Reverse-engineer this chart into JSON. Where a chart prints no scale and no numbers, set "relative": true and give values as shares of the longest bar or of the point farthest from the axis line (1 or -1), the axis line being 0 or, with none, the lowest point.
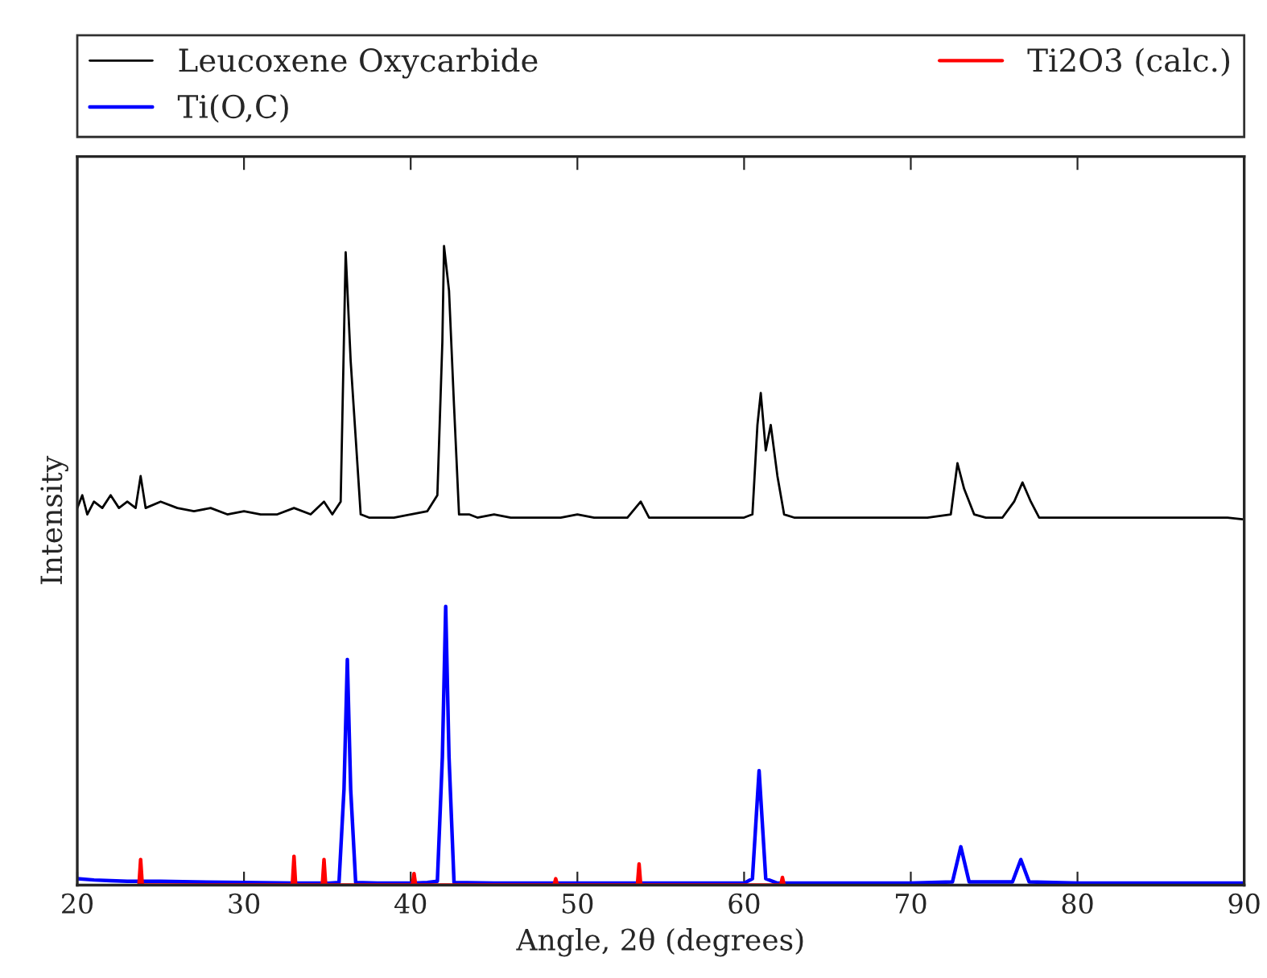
{
  "chart_data": {
    "type": "line",
    "relative": true,
    "xlabel": "Angle, 2θ (degrees)",
    "ylabel": "Intensity",
    "xlim": [
      20,
      90
    ],
    "xticks": [
      20,
      30,
      40,
      50,
      60,
      70,
      80,
      90
    ],
    "legend": "top",
    "grid": false,
    "series": [
      {
        "name": "Leucoxene Oxycarbide",
        "color": "#000000",
        "x": [
          20.0,
          20.3,
          20.6,
          21.0,
          21.5,
          22.0,
          22.5,
          23.0,
          23.5,
          23.8,
          24.1,
          25,
          26,
          27,
          28,
          29,
          30,
          31,
          32,
          33,
          34,
          34.8,
          35.3,
          35.8,
          36.1,
          36.4,
          36.7,
          37.0,
          37.5,
          38,
          39,
          40,
          41,
          41.6,
          41.9,
          42.0,
          42.3,
          42.6,
          42.9,
          43.5,
          44,
          45,
          46,
          47,
          48,
          49,
          50,
          51,
          52,
          53,
          53.8,
          54.3,
          55,
          56,
          57,
          58,
          59,
          60,
          60.5,
          60.8,
          61.0,
          61.3,
          61.6,
          62.0,
          62.4,
          63,
          65,
          67,
          69,
          71,
          72.4,
          72.8,
          73.2,
          73.8,
          74.5,
          75.5,
          76.2,
          76.7,
          77.2,
          77.7,
          79,
          81,
          83,
          85,
          87,
          89,
          90
        ],
        "values": [
          0.59,
          0.61,
          0.58,
          0.6,
          0.59,
          0.61,
          0.59,
          0.6,
          0.59,
          0.64,
          0.59,
          0.6,
          0.59,
          0.585,
          0.59,
          0.58,
          0.585,
          0.58,
          0.58,
          0.59,
          0.58,
          0.6,
          0.58,
          0.6,
          0.99,
          0.82,
          0.7,
          0.58,
          0.575,
          0.575,
          0.575,
          0.58,
          0.585,
          0.61,
          0.85,
          1.0,
          0.93,
          0.75,
          0.58,
          0.58,
          0.575,
          0.58,
          0.575,
          0.575,
          0.575,
          0.575,
          0.58,
          0.575,
          0.575,
          0.575,
          0.6,
          0.575,
          0.575,
          0.575,
          0.575,
          0.575,
          0.575,
          0.575,
          0.58,
          0.72,
          0.77,
          0.68,
          0.72,
          0.64,
          0.58,
          0.575,
          0.575,
          0.575,
          0.575,
          0.575,
          0.58,
          0.66,
          0.62,
          0.58,
          0.575,
          0.575,
          0.6,
          0.63,
          0.6,
          0.575,
          0.575,
          0.575,
          0.575,
          0.575,
          0.575,
          0.575,
          0.572
        ]
      },
      {
        "name": "Ti(O,C)",
        "color": "#0000ff",
        "x": [
          20,
          21,
          22,
          23,
          25,
          27,
          30,
          33,
          35,
          35.7,
          36.0,
          36.2,
          36.4,
          36.7,
          38,
          40,
          41,
          41.6,
          41.9,
          42.1,
          42.3,
          42.6,
          45,
          50,
          55,
          60,
          60.5,
          60.9,
          61.3,
          62,
          65,
          70,
          72.5,
          73.0,
          73.5,
          76.1,
          76.6,
          77.1,
          80,
          85,
          90
        ],
        "values": [
          0.01,
          0.008,
          0.007,
          0.006,
          0.006,
          0.005,
          0.004,
          0.003,
          0.003,
          0.004,
          0.15,
          0.353,
          0.15,
          0.004,
          0.003,
          0.003,
          0.004,
          0.006,
          0.2,
          0.436,
          0.2,
          0.004,
          0.003,
          0.003,
          0.003,
          0.003,
          0.01,
          0.179,
          0.01,
          0.003,
          0.003,
          0.003,
          0.005,
          0.06,
          0.005,
          0.005,
          0.04,
          0.005,
          0.003,
          0.003,
          0.003
        ]
      },
      {
        "name": "Ti2O3 (calc.)",
        "color": "#ff0000",
        "x": [
          23.7,
          23.8,
          23.9,
          32.9,
          33.0,
          33.1,
          34.7,
          34.8,
          34.9,
          40.1,
          40.2,
          40.3,
          48.6,
          48.7,
          48.8,
          53.6,
          53.7,
          53.8,
          62.2,
          62.3,
          62.4
        ],
        "values": [
          0,
          0.04,
          0,
          0,
          0.045,
          0,
          0,
          0.04,
          0,
          0,
          0.018,
          0,
          0,
          0.01,
          0,
          0,
          0.033,
          0,
          0,
          0.012,
          0
        ]
      }
    ]
  }
}
